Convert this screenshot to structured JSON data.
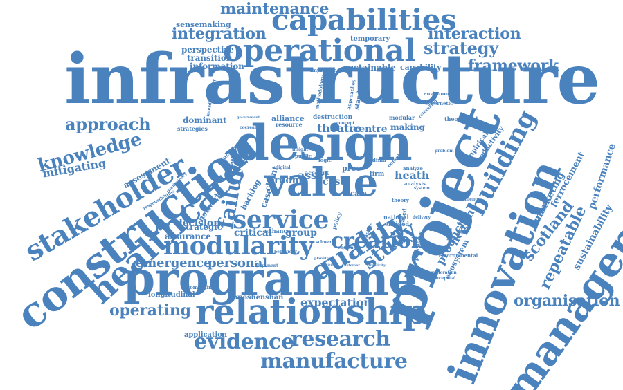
{
  "palette": {
    "word": "#4a82bd",
    "background": "#ffffff"
  },
  "words": [
    {
      "text": "infrastructure",
      "weight": 10
    },
    {
      "text": "project",
      "weight": 7
    },
    {
      "text": "innovation",
      "weight": 6
    },
    {
      "text": "management",
      "weight": 6
    },
    {
      "text": "construction",
      "weight": 6
    },
    {
      "text": "design",
      "weight": 7
    },
    {
      "text": "programme",
      "weight": 7
    },
    {
      "text": "relationship",
      "weight": 6
    },
    {
      "text": "value",
      "weight": 6
    },
    {
      "text": "operational",
      "weight": 5
    },
    {
      "text": "capabilities",
      "weight": 5
    },
    {
      "text": "healthcare",
      "weight": 5
    },
    {
      "text": "stakeholder",
      "weight": 5
    },
    {
      "text": "modularity",
      "weight": 4
    },
    {
      "text": "quality",
      "weight": 4
    },
    {
      "text": "service",
      "weight": 4
    },
    {
      "text": "creation",
      "weight": 3
    },
    {
      "text": "building",
      "weight": 4
    },
    {
      "text": "evidence",
      "weight": 4
    },
    {
      "text": "research",
      "weight": 3
    },
    {
      "text": "manufacture",
      "weight": 3
    },
    {
      "text": "knowledge",
      "weight": 3
    },
    {
      "text": "approach",
      "weight": 3
    },
    {
      "text": "strategy",
      "weight": 3
    },
    {
      "text": "interaction",
      "weight": 3
    },
    {
      "text": "integration",
      "weight": 3
    },
    {
      "text": "maintenance",
      "weight": 3
    },
    {
      "text": "framework",
      "weight": 3
    },
    {
      "text": "organisation",
      "weight": 3
    },
    {
      "text": "operating",
      "weight": 3
    },
    {
      "text": "failure",
      "weight": 3
    },
    {
      "text": "study",
      "weight": 3
    },
    {
      "text": "scotland",
      "weight": 3
    },
    {
      "text": "repeatable",
      "weight": 3
    },
    {
      "text": "emergence",
      "weight": 2
    },
    {
      "text": "personal",
      "weight": 2
    },
    {
      "text": "expectation",
      "weight": 2
    },
    {
      "text": "mitigating",
      "weight": 2
    },
    {
      "text": "theatre",
      "weight": 2
    },
    {
      "text": "sustainability",
      "weight": 2
    },
    {
      "text": "performance",
      "weight": 2
    },
    {
      "text": "perspective",
      "weight": 2
    },
    {
      "text": "transition",
      "weight": 2
    },
    {
      "text": "information",
      "weight": 2
    },
    {
      "text": "sensemaking",
      "weight": 2
    },
    {
      "text": "temporary",
      "weight": 2
    },
    {
      "text": "sustainable",
      "weight": 2
    },
    {
      "text": "capability",
      "weight": 2
    },
    {
      "text": "centre",
      "weight": 2
    },
    {
      "text": "making",
      "weight": 2
    },
    {
      "text": "decision",
      "weight": 2
    },
    {
      "text": "critical",
      "weight": 2
    },
    {
      "text": "group",
      "weight": 2
    },
    {
      "text": "asset",
      "weight": 2
    },
    {
      "text": "heath",
      "weight": 2
    },
    {
      "text": "room",
      "weight": 2
    },
    {
      "text": "cost",
      "weight": 2
    },
    {
      "text": "dominant",
      "weight": 2
    },
    {
      "text": "alliance",
      "weight": 2
    },
    {
      "text": "assurance",
      "weight": 2
    },
    {
      "text": "strategic",
      "weight": 2
    },
    {
      "text": "longitudinal",
      "weight": 1
    },
    {
      "text": "huoshenshan",
      "weight": 1
    },
    {
      "text": "application",
      "weight": 1
    },
    {
      "text": "product",
      "weight": 2
    },
    {
      "text": "health",
      "weight": 2
    },
    {
      "text": "ecosystem",
      "weight": 1
    },
    {
      "text": "marketing",
      "weight": 2
    },
    {
      "text": "ferrocement",
      "weight": 2
    },
    {
      "text": "productivity",
      "weight": 1
    },
    {
      "text": "empirical",
      "weight": 1
    },
    {
      "text": "network",
      "weight": 1
    },
    {
      "text": "assessment",
      "weight": 2
    },
    {
      "text": "backlog",
      "weight": 1
    },
    {
      "text": "case",
      "weight": 1
    },
    {
      "text": "client",
      "weight": 1
    },
    {
      "text": "enhance",
      "weight": 1
    },
    {
      "text": "account",
      "weight": 1
    },
    {
      "text": "national",
      "weight": 1
    },
    {
      "text": "enabled",
      "weight": 1
    },
    {
      "text": "care",
      "weight": 1
    },
    {
      "text": "combining",
      "weight": 1
    },
    {
      "text": "environment",
      "weight": 1
    },
    {
      "text": "cybernetic",
      "weight": 1
    },
    {
      "text": "theoretical",
      "weight": 1
    },
    {
      "text": "improvement",
      "weight": 1
    },
    {
      "text": "strategies",
      "weight": 1
    },
    {
      "text": "destruction",
      "weight": 1
    },
    {
      "text": "resource",
      "weight": 1
    },
    {
      "text": "modular",
      "weight": 1
    },
    {
      "text": "firm",
      "weight": 1
    },
    {
      "text": "dfma",
      "weight": 1
    },
    {
      "text": "proc",
      "weight": 1
    },
    {
      "text": "standard",
      "weight": 1
    },
    {
      "text": "methodology",
      "weight": 1
    },
    {
      "text": "policy",
      "weight": 1
    },
    {
      "text": "analyze",
      "weight": 1
    },
    {
      "text": "analysis",
      "weight": 1
    },
    {
      "text": "theory",
      "weight": 1
    },
    {
      "text": "facilities",
      "weight": 1
    },
    {
      "text": "processes",
      "weight": 1
    },
    {
      "text": "environmental",
      "weight": 1
    },
    {
      "text": "exploration",
      "weight": 1
    },
    {
      "text": "conceptual",
      "weight": 1
    },
    {
      "text": "education",
      "weight": 1
    },
    {
      "text": "public",
      "weight": 1
    },
    {
      "text": "logic",
      "weight": 1
    },
    {
      "text": "risk",
      "weight": 1
    },
    {
      "text": "based",
      "weight": 1
    },
    {
      "text": "alignment",
      "weight": 1
    },
    {
      "text": "behaviour",
      "weight": 1
    },
    {
      "text": "approaches",
      "weight": 1
    },
    {
      "text": "system",
      "weight": 1
    },
    {
      "text": "complex",
      "weight": 1
    },
    {
      "text": "delivery",
      "weight": 1
    },
    {
      "text": "managing",
      "weight": 1
    },
    {
      "text": "challenge",
      "weight": 1
    },
    {
      "text": "problem",
      "weight": 1
    },
    {
      "text": "practice",
      "weight": 1
    },
    {
      "text": "england",
      "weight": 1
    },
    {
      "text": "condition",
      "weight": 1
    },
    {
      "text": "customer",
      "weight": 1
    },
    {
      "text": "planning",
      "weight": 1
    },
    {
      "text": "digital",
      "weight": 1
    },
    {
      "text": "insight",
      "weight": 1
    },
    {
      "text": "method",
      "weight": 1
    },
    {
      "text": "cocreation",
      "weight": 1
    },
    {
      "text": "government",
      "weight": 1
    },
    {
      "text": "concept",
      "weight": 1
    },
    {
      "text": "schwartz",
      "weight": 1
    },
    {
      "text": "interdisciplinary",
      "weight": 1
    },
    {
      "text": "rethinking",
      "weight": 1
    },
    {
      "text": "simplicity",
      "weight": 1
    },
    {
      "text": "responsibilities",
      "weight": 1
    },
    {
      "text": "preliminary",
      "weight": 1
    }
  ]
}
